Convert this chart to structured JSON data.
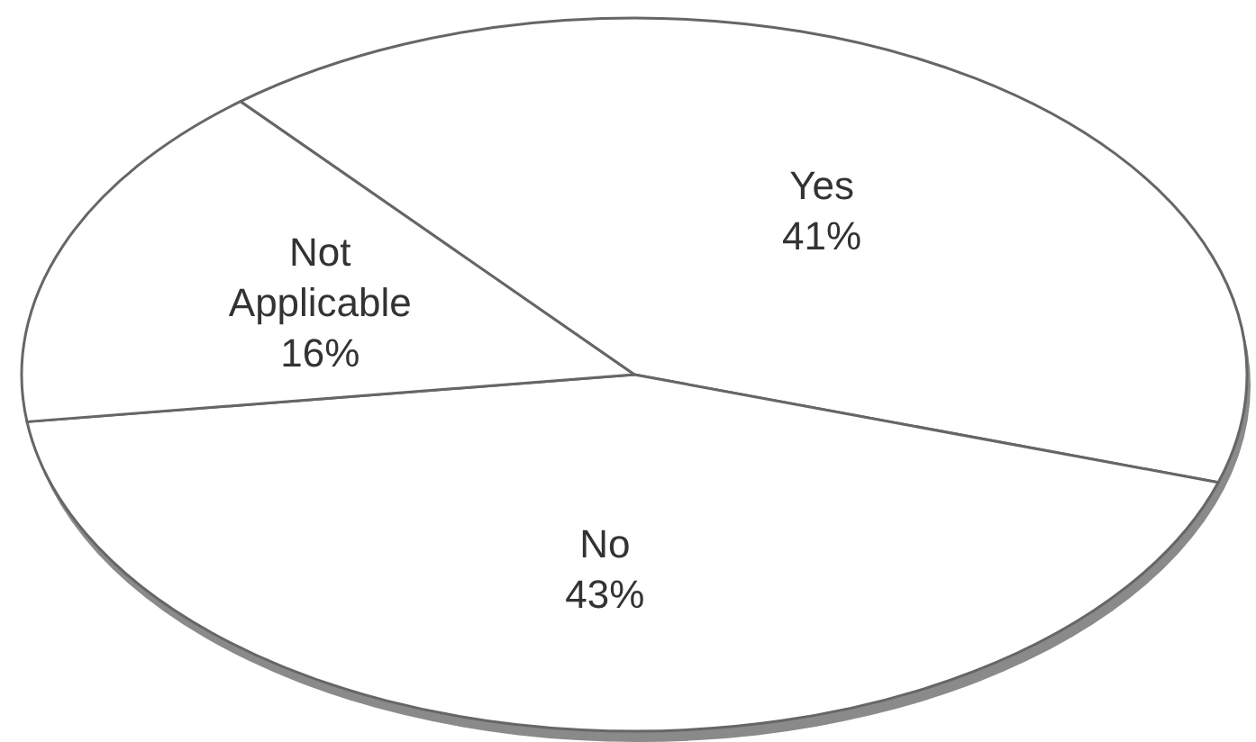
{
  "chart_data": {
    "type": "pie",
    "categories": [
      "Yes",
      "No",
      "Not Applicable"
    ],
    "values": [
      41,
      43,
      16
    ],
    "value_labels": [
      "41%",
      "43%",
      "16%"
    ],
    "colors": [
      "#ffffff",
      "#ffffff",
      "#ffffff"
    ],
    "legend": false
  }
}
